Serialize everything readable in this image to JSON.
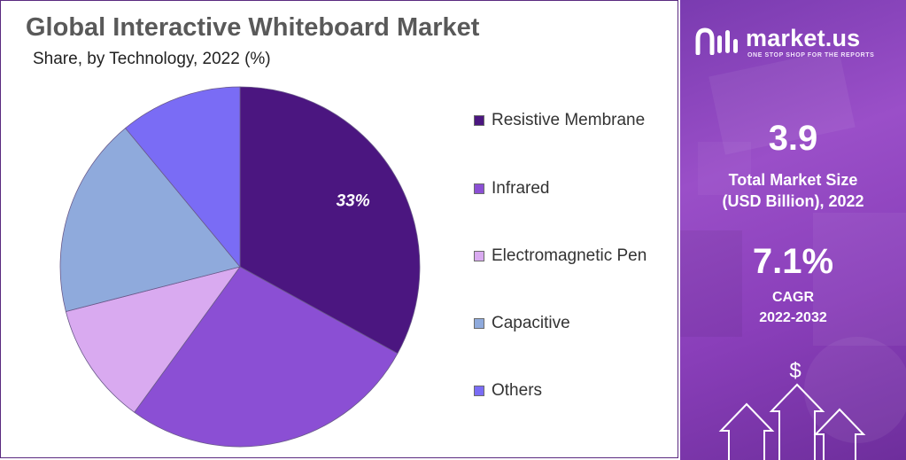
{
  "header": {
    "title": "Global Interactive Whiteboard Market",
    "subtitle": "Share, by Technology, 2022 (%)"
  },
  "chart_data": {
    "type": "pie",
    "title": "Global Interactive Whiteboard Market",
    "subtitle": "Share, by Technology, 2022 (%)",
    "categories": [
      "Resistive Membrane",
      "Infrared",
      "Electromagnetic Pen",
      "Capacitive",
      "Others"
    ],
    "values": [
      33,
      27,
      11,
      18,
      11
    ],
    "colors": [
      "#4b1680",
      "#8b4fd4",
      "#d9aaf0",
      "#8faadc",
      "#7a6cf5"
    ],
    "data_labels": [
      "33%",
      "",
      "",
      "",
      ""
    ],
    "start_angle_deg": 0,
    "direction": "clockwise",
    "legend_position": "right"
  },
  "legend": {
    "items": [
      {
        "label": "Resistive Membrane",
        "color": "#4b1680"
      },
      {
        "label": "Infrared",
        "color": "#8b4fd4"
      },
      {
        "label": "Electromagnetic Pen",
        "color": "#d9aaf0"
      },
      {
        "label": "Capacitive",
        "color": "#8faadc"
      },
      {
        "label": "Others",
        "color": "#7a6cf5"
      }
    ]
  },
  "side_panel": {
    "brand_name": "market.us",
    "brand_tagline": "ONE STOP SHOP FOR THE REPORTS",
    "market_size_value": "3.9",
    "market_size_label_1": "Total Market Size",
    "market_size_label_2": "(USD Billion), 2022",
    "cagr_value": "7.1%",
    "cagr_label_1": "CAGR",
    "cagr_label_2": "2022-2032",
    "dollar_symbol": "$"
  },
  "colors": {
    "panel_purple": "#8a42c0",
    "title_gray": "#595959"
  }
}
